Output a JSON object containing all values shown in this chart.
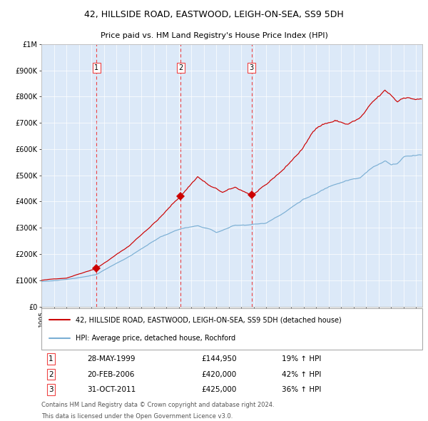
{
  "title": "42, HILLSIDE ROAD, EASTWOOD, LEIGH-ON-SEA, SS9 5DH",
  "subtitle": "Price paid vs. HM Land Registry's House Price Index (HPI)",
  "legend_red": "42, HILLSIDE ROAD, EASTWOOD, LEIGH-ON-SEA, SS9 5DH (detached house)",
  "legend_blue": "HPI: Average price, detached house, Rochford",
  "footer1": "Contains HM Land Registry data © Crown copyright and database right 2024.",
  "footer2": "This data is licensed under the Open Government Licence v3.0.",
  "transactions": [
    {
      "num": 1,
      "date": "28-MAY-1999",
      "date_float": 1999.4,
      "price": 144950,
      "pct": "19% ↑ HPI"
    },
    {
      "num": 2,
      "date": "20-FEB-2006",
      "date_float": 2006.13,
      "price": 420000,
      "pct": "42% ↑ HPI"
    },
    {
      "num": 3,
      "date": "31-OCT-2011",
      "date_float": 2011.83,
      "price": 425000,
      "pct": "36% ↑ HPI"
    }
  ],
  "ylim": [
    0,
    1000000
  ],
  "xlim_start": 1995.0,
  "xlim_end": 2025.5,
  "background_color": "#dce9f8",
  "red_color": "#cc0000",
  "blue_color": "#7bafd4",
  "grid_color": "#ffffff",
  "vline_color": "#ee4444",
  "spine_color": "#aaaaaa",
  "title_fontsize": 9.0,
  "subtitle_fontsize": 8.0,
  "ytick_fontsize": 7.0,
  "xtick_fontsize": 6.5,
  "legend_fontsize": 7.0,
  "table_fontsize": 7.5,
  "footer_fontsize": 6.0
}
